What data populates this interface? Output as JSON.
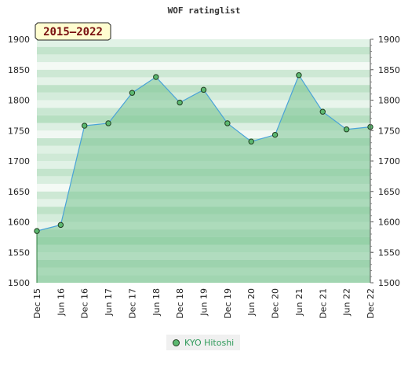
{
  "chart_data": {
    "type": "area",
    "title": "WOF ratinglist",
    "badge": "2015–2022",
    "ylim": [
      1500,
      1900
    ],
    "yticks": [
      1500,
      1550,
      1600,
      1650,
      1700,
      1750,
      1800,
      1850,
      1900
    ],
    "categories": [
      "Dec 15",
      "Jun 16",
      "Dec 16",
      "Jun 17",
      "Dec 17",
      "Jun 18",
      "Dec 18",
      "Jun 19",
      "Dec 19",
      "Jun 20",
      "Dec 20",
      "Jun 21",
      "Dec 21",
      "Jun 22",
      "Dec 22"
    ],
    "series": [
      {
        "name": "KYO Hitoshi",
        "values": [
          1585,
          1595,
          1758,
          1762,
          1812,
          1838,
          1796,
          1817,
          1762,
          1732,
          1743,
          1841,
          1781,
          1752,
          1756
        ]
      }
    ],
    "grid": true,
    "legend_position": "bottom",
    "colors": {
      "line": "#4aa3d8",
      "fill": "#7cc493",
      "marker": "#5cb870",
      "marker_edge": "#1f3d1f",
      "badge_bg": "#fffdd0",
      "badge_text": "#7a1010"
    }
  }
}
